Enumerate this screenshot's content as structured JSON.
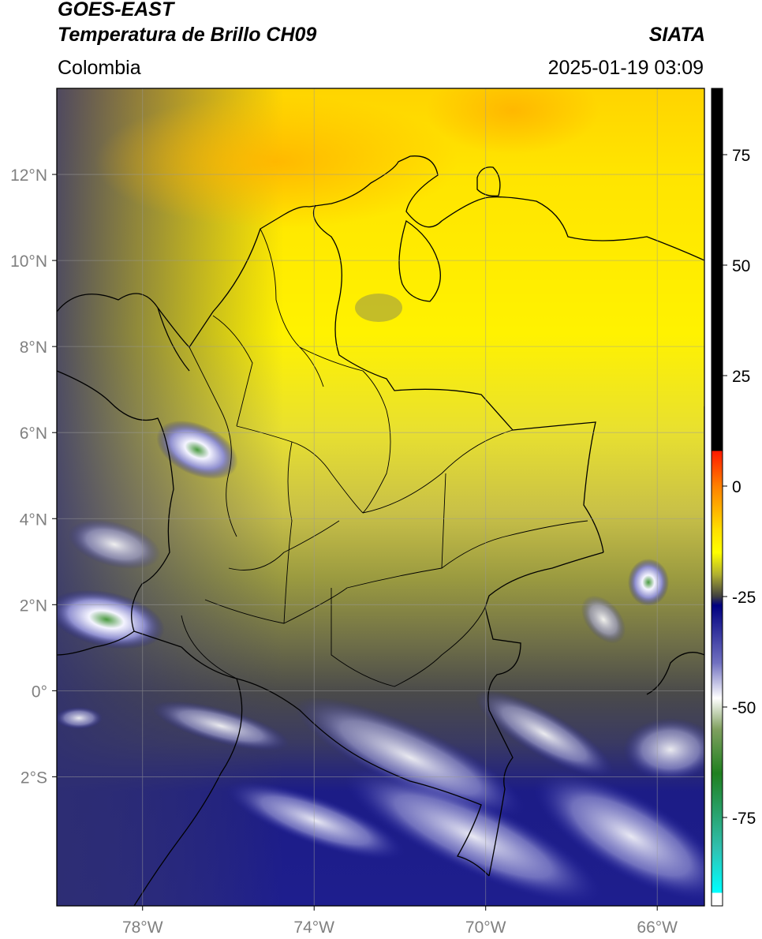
{
  "header": {
    "title_line1": "GOES-EAST",
    "title_line2": "Temperatura de Brillo CH09",
    "brand": "SIATA",
    "region": "Colombia",
    "timestamp": "2025-01-19 03:09"
  },
  "map": {
    "lon_range": [
      -80,
      -64.9
    ],
    "lat_range": [
      -5,
      14
    ],
    "lon_ticks": [
      {
        "value": -78,
        "label": "78°W"
      },
      {
        "value": -74,
        "label": "74°W"
      },
      {
        "value": -70,
        "label": "70°W"
      },
      {
        "value": -66,
        "label": "66°W"
      }
    ],
    "lat_ticks": [
      {
        "value": 12,
        "label": "12°N"
      },
      {
        "value": 10,
        "label": "10°N"
      },
      {
        "value": 8,
        "label": "8°N"
      },
      {
        "value": 6,
        "label": "6°N"
      },
      {
        "value": 4,
        "label": "4°N"
      },
      {
        "value": 2,
        "label": "2°N"
      },
      {
        "value": 0,
        "label": "0°"
      },
      {
        "value": -2,
        "label": "2°S"
      }
    ],
    "colors": {
      "warm": "#ffe800",
      "orange": "#ffc000",
      "olive": "#8a8a3a",
      "gray": "#4a4a4a",
      "navy": "#1a1a8a",
      "cloud": "#e8e8f8",
      "core": "#5a9a4a"
    }
  },
  "colorbar": {
    "range": [
      -95,
      90
    ],
    "ticks": [
      {
        "value": 75,
        "label": "75"
      },
      {
        "value": 50,
        "label": "50"
      },
      {
        "value": 25,
        "label": "25"
      },
      {
        "value": 0,
        "label": "0"
      },
      {
        "value": -25,
        "label": "-25"
      },
      {
        "value": -50,
        "label": "-50"
      },
      {
        "value": -75,
        "label": "-75"
      }
    ],
    "stops": [
      {
        "value": 90,
        "color": "#000000"
      },
      {
        "value": 8,
        "color": "#000000"
      },
      {
        "value": 7.9,
        "color": "#ff1a00"
      },
      {
        "value": 0,
        "color": "#ff8000"
      },
      {
        "value": -10,
        "color": "#ffe000"
      },
      {
        "value": -15,
        "color": "#ffff00"
      },
      {
        "value": -20,
        "color": "#b0b030"
      },
      {
        "value": -25,
        "color": "#404040"
      },
      {
        "value": -27,
        "color": "#000080"
      },
      {
        "value": -40,
        "color": "#7070c0"
      },
      {
        "value": -48,
        "color": "#ffffff"
      },
      {
        "value": -55,
        "color": "#80a060"
      },
      {
        "value": -65,
        "color": "#208020"
      },
      {
        "value": -82,
        "color": "#30c0b0"
      },
      {
        "value": -92,
        "color": "#00ffff"
      },
      {
        "value": -92.1,
        "color": "#ffffff"
      },
      {
        "value": -95,
        "color": "#ffffff"
      }
    ]
  }
}
